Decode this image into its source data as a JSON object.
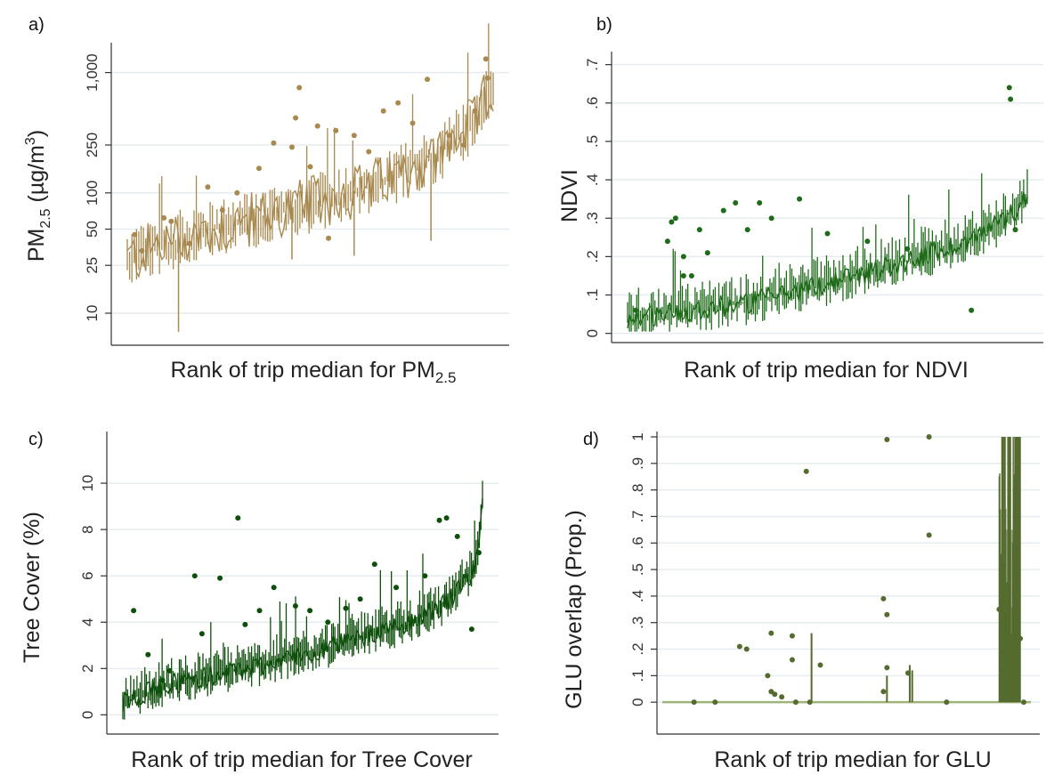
{
  "chart_data": [
    {
      "panel": "a)",
      "type": "line",
      "color": "#a8894f",
      "ylabel": "PM",
      "ylabel_sub": "2.5",
      "ylabel_rest": " (µg/m",
      "ylabel_sup": "3",
      "ylabel_end": ")",
      "xlabel": "Rank of trip median for PM",
      "xlabel_sub": "2.5",
      "yscale": "log",
      "ylim": [
        6,
        1600
      ],
      "yticks": [
        {
          "value": 10,
          "label": "10"
        },
        {
          "value": 25,
          "label": "25"
        },
        {
          "value": 50,
          "label": "50"
        },
        {
          "value": 100,
          "label": "100"
        },
        {
          "value": 250,
          "label": "250"
        },
        {
          "value": 1000,
          "label": "1,000"
        }
      ],
      "grid": true,
      "trend": [
        [
          0,
          28
        ],
        [
          0.15,
          42
        ],
        [
          0.3,
          55
        ],
        [
          0.5,
          80
        ],
        [
          0.7,
          120
        ],
        [
          0.85,
          200
        ],
        [
          0.95,
          380
        ],
        [
          1.0,
          750
        ]
      ],
      "spread": 0.25,
      "n_points": 160,
      "outliers": [
        {
          "x": 0.02,
          "y": 45
        },
        {
          "x": 0.04,
          "y": 33
        },
        {
          "x": 0.1,
          "y": 62
        },
        {
          "x": 0.12,
          "y": 58
        },
        {
          "x": 0.17,
          "y": 38
        },
        {
          "x": 0.22,
          "y": 112
        },
        {
          "x": 0.26,
          "y": 72
        },
        {
          "x": 0.3,
          "y": 100
        },
        {
          "x": 0.36,
          "y": 160
        },
        {
          "x": 0.4,
          "y": 260
        },
        {
          "x": 0.45,
          "y": 240
        },
        {
          "x": 0.46,
          "y": 420
        },
        {
          "x": 0.47,
          "y": 750
        },
        {
          "x": 0.5,
          "y": 165
        },
        {
          "x": 0.52,
          "y": 360
        },
        {
          "x": 0.57,
          "y": 330
        },
        {
          "x": 0.62,
          "y": 300
        },
        {
          "x": 0.66,
          "y": 220
        },
        {
          "x": 0.7,
          "y": 480
        },
        {
          "x": 0.74,
          "y": 560
        },
        {
          "x": 0.78,
          "y": 380
        },
        {
          "x": 0.82,
          "y": 880
        },
        {
          "x": 0.88,
          "y": 300
        },
        {
          "x": 0.92,
          "y": 250
        },
        {
          "x": 0.95,
          "y": 480
        },
        {
          "x": 0.98,
          "y": 1300
        },
        {
          "x": 0.985,
          "y": 900
        },
        {
          "x": 0.55,
          "y": 42
        }
      ],
      "lows": [
        {
          "x": 0.14,
          "y": 7
        },
        {
          "x": 0.45,
          "y": 28
        },
        {
          "x": 0.62,
          "y": 30
        },
        {
          "x": 0.83,
          "y": 40
        }
      ]
    },
    {
      "panel": "b)",
      "type": "line",
      "color": "#1f6b1a",
      "ylabel": "NDVI",
      "xlabel": "Rank of trip median for NDVI",
      "ylim": [
        -0.01,
        0.72
      ],
      "yticks": [
        {
          "value": 0,
          "label": "0"
        },
        {
          "value": 0.1,
          "label": ".1"
        },
        {
          "value": 0.2,
          "label": ".2"
        },
        {
          "value": 0.3,
          "label": ".3"
        },
        {
          "value": 0.4,
          "label": ".4"
        },
        {
          "value": 0.5,
          "label": ".5"
        },
        {
          "value": 0.6,
          "label": ".6"
        },
        {
          "value": 0.7,
          "label": ".7"
        }
      ],
      "grid": true,
      "trend": [
        [
          0,
          0.04
        ],
        [
          0.15,
          0.06
        ],
        [
          0.3,
          0.08
        ],
        [
          0.5,
          0.13
        ],
        [
          0.7,
          0.19
        ],
        [
          0.85,
          0.24
        ],
        [
          0.95,
          0.3
        ],
        [
          1.0,
          0.36
        ]
      ],
      "spread": 0.06,
      "n_points": 220,
      "outliers": [
        {
          "x": 0.02,
          "y": 0.06
        },
        {
          "x": 0.1,
          "y": 0.24
        },
        {
          "x": 0.11,
          "y": 0.29
        },
        {
          "x": 0.12,
          "y": 0.3
        },
        {
          "x": 0.14,
          "y": 0.2
        },
        {
          "x": 0.16,
          "y": 0.15
        },
        {
          "x": 0.18,
          "y": 0.27
        },
        {
          "x": 0.2,
          "y": 0.21
        },
        {
          "x": 0.24,
          "y": 0.32
        },
        {
          "x": 0.27,
          "y": 0.34
        },
        {
          "x": 0.3,
          "y": 0.27
        },
        {
          "x": 0.33,
          "y": 0.34
        },
        {
          "x": 0.36,
          "y": 0.3
        },
        {
          "x": 0.43,
          "y": 0.35
        },
        {
          "x": 0.5,
          "y": 0.26
        },
        {
          "x": 0.6,
          "y": 0.24
        },
        {
          "x": 0.7,
          "y": 0.22
        },
        {
          "x": 0.86,
          "y": 0.06
        },
        {
          "x": 0.955,
          "y": 0.64
        },
        {
          "x": 0.958,
          "y": 0.61
        },
        {
          "x": 0.97,
          "y": 0.27
        },
        {
          "x": 0.14,
          "y": 0.15
        }
      ]
    },
    {
      "panel": "c)",
      "type": "line",
      "color": "#0f4f0c",
      "ylabel": "Tree Cover (%)",
      "xlabel": "Rank of trip median for Tree Cover",
      "ylim": [
        -0.6,
        12
      ],
      "yticks": [
        {
          "value": 0,
          "label": "0"
        },
        {
          "value": 2,
          "label": "2"
        },
        {
          "value": 4,
          "label": "4"
        },
        {
          "value": 6,
          "label": "6"
        },
        {
          "value": 8,
          "label": "8"
        },
        {
          "value": 10,
          "label": "10"
        }
      ],
      "grid": true,
      "trend": [
        [
          0,
          0.6
        ],
        [
          0.15,
          1.4
        ],
        [
          0.35,
          2.0
        ],
        [
          0.55,
          2.8
        ],
        [
          0.75,
          3.7
        ],
        [
          0.9,
          4.8
        ],
        [
          0.98,
          6.2
        ],
        [
          1.0,
          9.5
        ]
      ],
      "spread": 0.9,
      "n_points": 230,
      "outliers": [
        {
          "x": 0.03,
          "y": 4.5
        },
        {
          "x": 0.07,
          "y": 2.6
        },
        {
          "x": 0.11,
          "y": 1.5
        },
        {
          "x": 0.13,
          "y": 1.9
        },
        {
          "x": 0.2,
          "y": 6.0
        },
        {
          "x": 0.22,
          "y": 3.5
        },
        {
          "x": 0.27,
          "y": 5.9
        },
        {
          "x": 0.32,
          "y": 8.5
        },
        {
          "x": 0.34,
          "y": 3.9
        },
        {
          "x": 0.38,
          "y": 4.5
        },
        {
          "x": 0.42,
          "y": 5.5
        },
        {
          "x": 0.48,
          "y": 4.7
        },
        {
          "x": 0.52,
          "y": 4.5
        },
        {
          "x": 0.57,
          "y": 4.0
        },
        {
          "x": 0.62,
          "y": 4.6
        },
        {
          "x": 0.66,
          "y": 5.0
        },
        {
          "x": 0.7,
          "y": 6.5
        },
        {
          "x": 0.76,
          "y": 5.5
        },
        {
          "x": 0.84,
          "y": 6.0
        },
        {
          "x": 0.88,
          "y": 8.4
        },
        {
          "x": 0.9,
          "y": 8.5
        },
        {
          "x": 0.93,
          "y": 7.7
        },
        {
          "x": 0.97,
          "y": 3.7
        },
        {
          "x": 0.99,
          "y": 7.0
        }
      ]
    },
    {
      "panel": "d)",
      "type": "scatter",
      "color": "#556b2f",
      "ylabel": "GLU overlap (Prop.)",
      "xlabel": "Rank of trip median for GLU",
      "ylim": [
        -0.1,
        1.0
      ],
      "yticks": [
        {
          "value": 0,
          "label": "0"
        },
        {
          "value": 0.1,
          "label": ".1"
        },
        {
          "value": 0.2,
          "label": ".2"
        },
        {
          "value": 0.3,
          "label": ".3"
        },
        {
          "value": 0.4,
          "label": ".4"
        },
        {
          "value": 0.5,
          "label": ".5"
        },
        {
          "value": 0.6,
          "label": ".6"
        },
        {
          "value": 0.7,
          "label": ".7"
        },
        {
          "value": 0.8,
          "label": ".8"
        },
        {
          "value": 0.9,
          "label": ".9"
        },
        {
          "value": 1.0,
          "label": "1"
        }
      ],
      "grid": true,
      "points": [
        {
          "x": 0.06,
          "y": 0.0
        },
        {
          "x": 0.12,
          "y": 0.0
        },
        {
          "x": 0.19,
          "y": 0.21
        },
        {
          "x": 0.21,
          "y": 0.2
        },
        {
          "x": 0.27,
          "y": 0.1
        },
        {
          "x": 0.28,
          "y": 0.26
        },
        {
          "x": 0.28,
          "y": 0.04
        },
        {
          "x": 0.29,
          "y": 0.03
        },
        {
          "x": 0.31,
          "y": 0.02
        },
        {
          "x": 0.34,
          "y": 0.25
        },
        {
          "x": 0.34,
          "y": 0.16
        },
        {
          "x": 0.35,
          "y": 0.0
        },
        {
          "x": 0.38,
          "y": 0.87
        },
        {
          "x": 0.39,
          "y": 0.0
        },
        {
          "x": 0.42,
          "y": 0.14
        },
        {
          "x": 0.61,
          "y": 0.99
        },
        {
          "x": 0.6,
          "y": 0.39
        },
        {
          "x": 0.61,
          "y": 0.33
        },
        {
          "x": 0.61,
          "y": 0.13
        },
        {
          "x": 0.6,
          "y": 0.04
        },
        {
          "x": 0.67,
          "y": 0.11
        },
        {
          "x": 0.73,
          "y": 1.0
        },
        {
          "x": 0.73,
          "y": 0.63
        },
        {
          "x": 0.78,
          "y": 0.0
        },
        {
          "x": 0.93,
          "y": 0.35
        },
        {
          "x": 0.94,
          "y": 0.27
        },
        {
          "x": 0.99,
          "y": 0.24
        },
        {
          "x": 1.0,
          "y": 0.0
        }
      ],
      "spikes": [
        {
          "x": 0.395,
          "y": 0.26
        },
        {
          "x": 0.61,
          "y": 0.1
        },
        {
          "x": 0.675,
          "y": 0.14
        },
        {
          "x": 0.682,
          "y": 0.12
        }
      ],
      "dense_from": 0.93,
      "dense_to": 0.99
    }
  ]
}
